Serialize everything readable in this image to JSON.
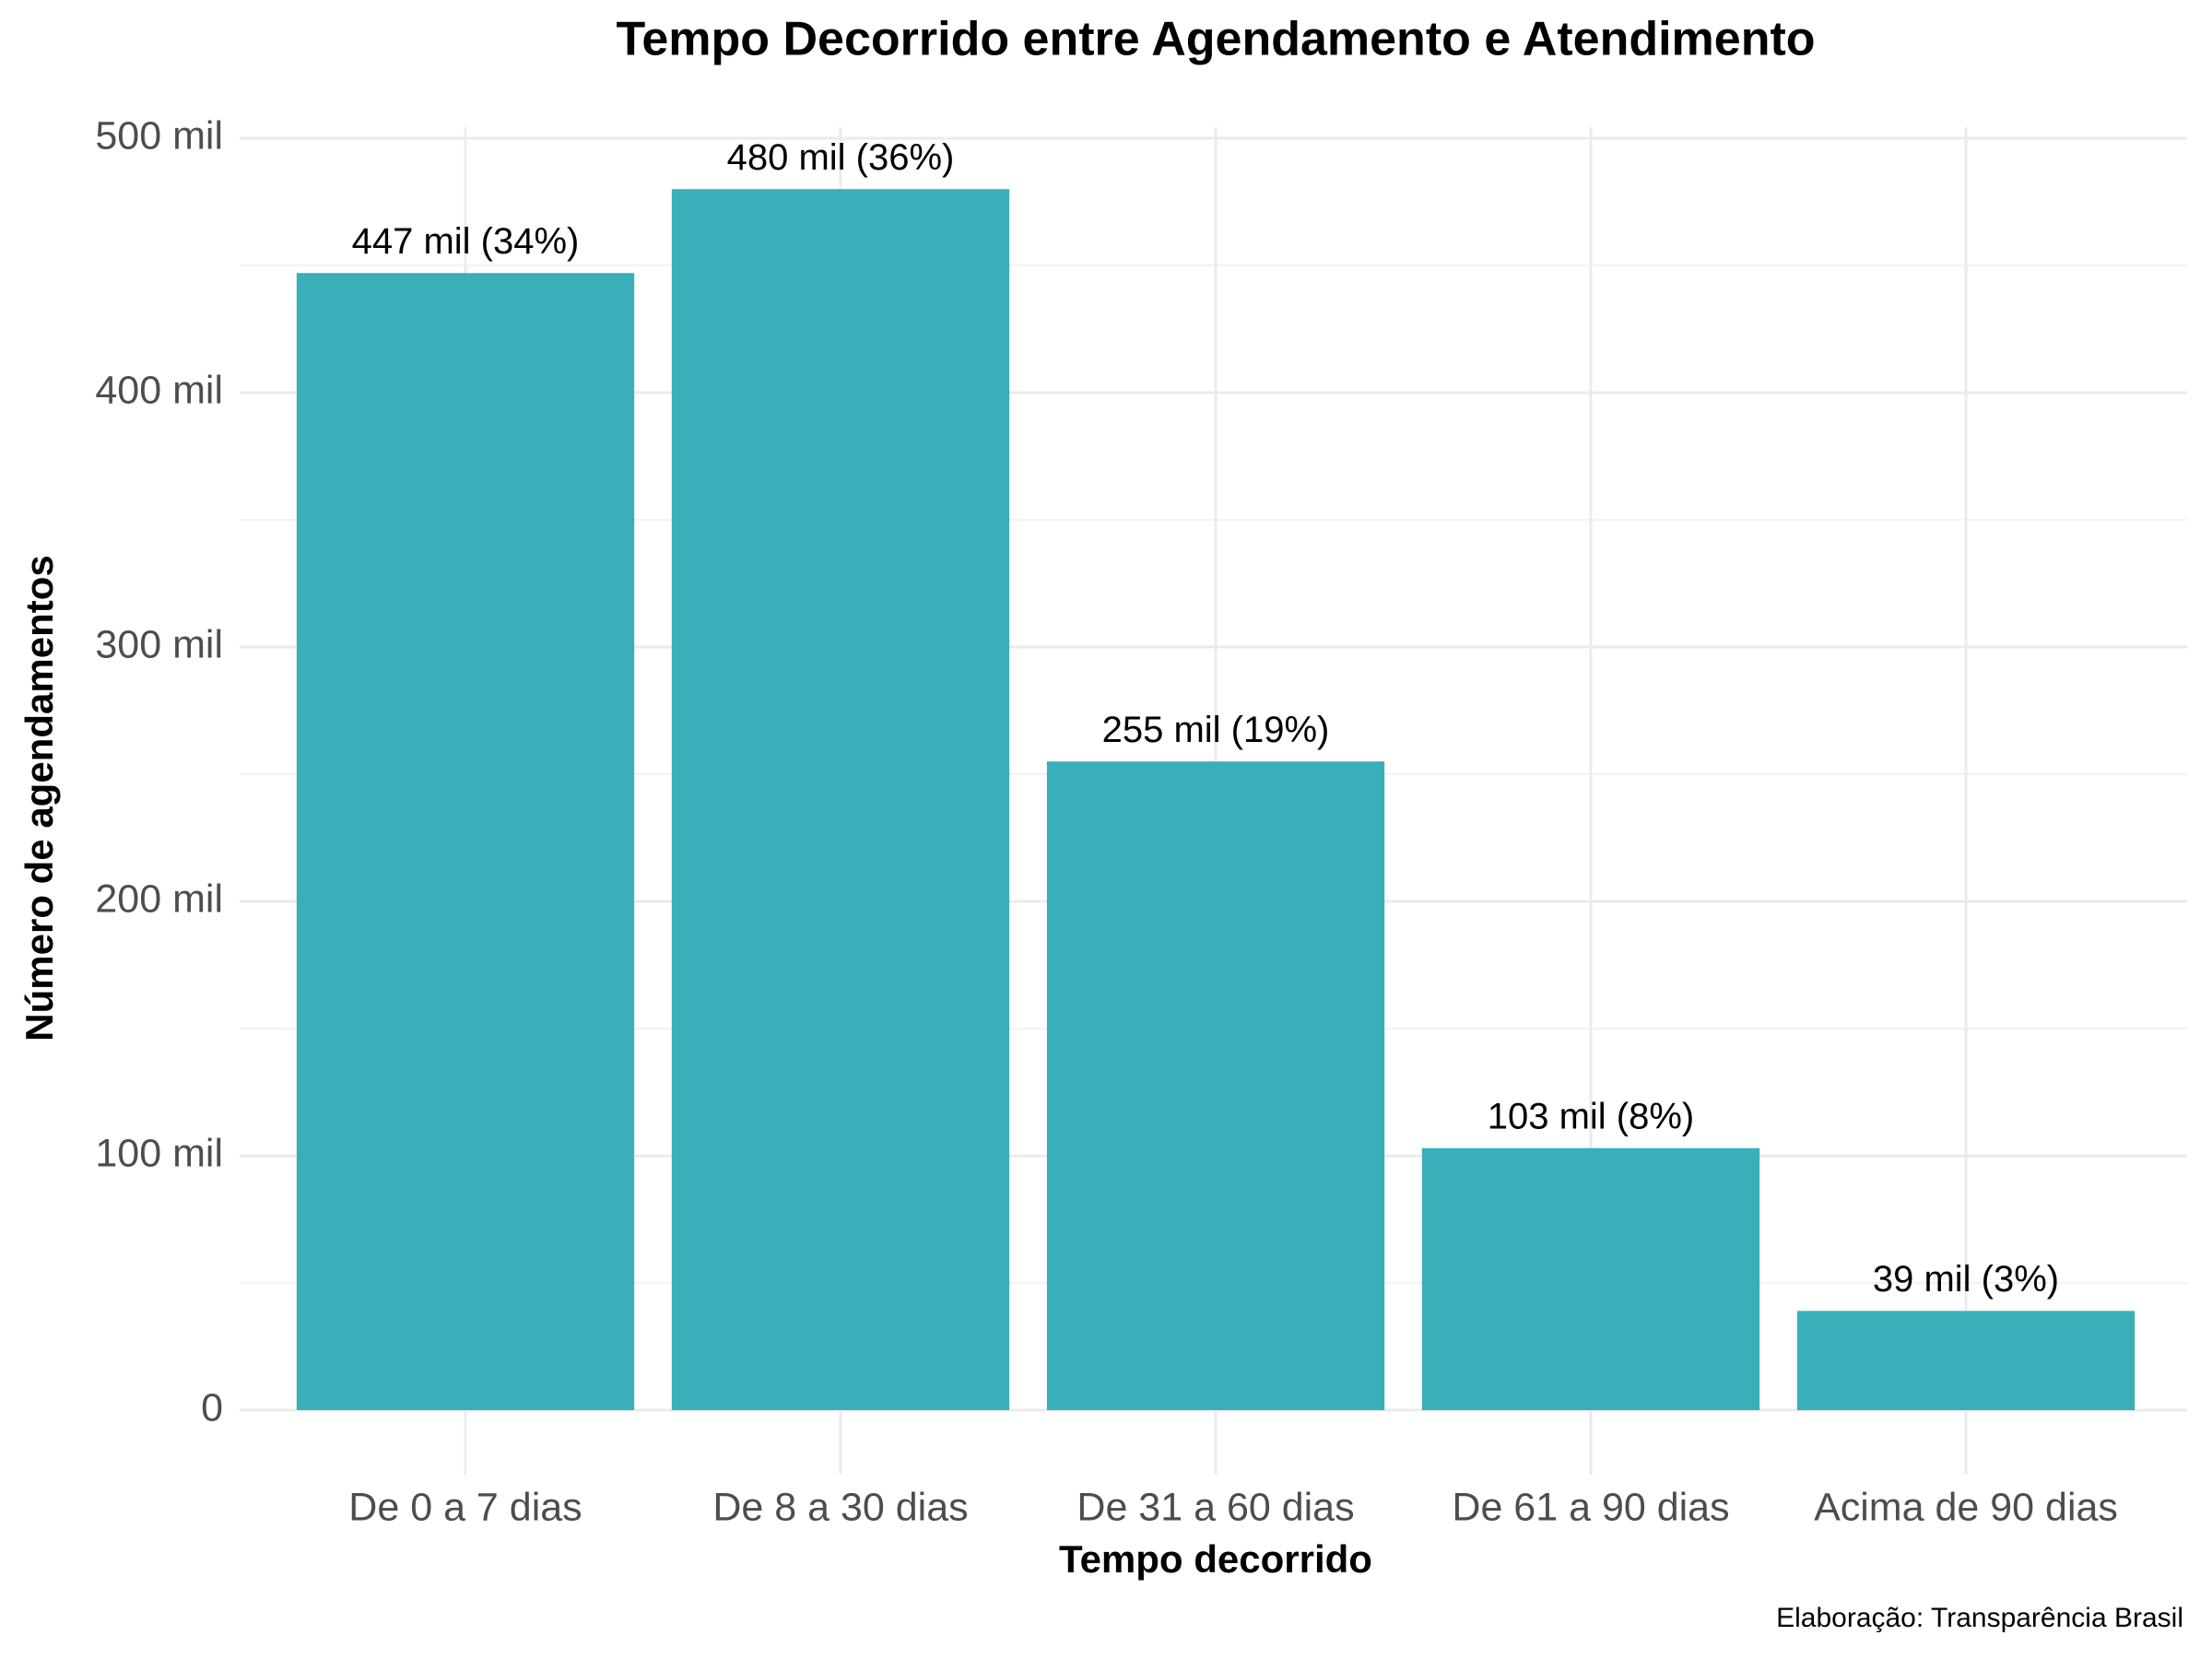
{
  "chart_data": {
    "type": "bar",
    "title": "Tempo Decorrido entre Agendamento e Atendimento",
    "x_label": "Tempo decorrido",
    "y_label": "Número de agendamentos",
    "caption": "Elaboração: Transparência Brasil",
    "categories": [
      "De 0 a 7 dias",
      "De 8 a 30 dias",
      "De 31 a 60 dias",
      "De 61 a 90 dias",
      "Acima de 90 dias"
    ],
    "values": [
      447000,
      480000,
      255000,
      103000,
      39000
    ],
    "value_labels": [
      "447 mil (34%)",
      "480 mil (36%)",
      "255 mil (19%)",
      "103 mil (8%)",
      "39 mil (3%)"
    ],
    "color": "#38afb9",
    "ylim": [
      0,
      500000
    ],
    "yticks": [
      0,
      {
        "value": 100000,
        "label": "100 mil"
      },
      {
        "value": 200000,
        "label": "200 mil"
      },
      {
        "value": 300000,
        "label": "300 mil"
      },
      {
        "value": 400000,
        "label": "400 mil"
      },
      {
        "value": 500000,
        "label": "500 mil"
      }
    ],
    "grid": true
  }
}
